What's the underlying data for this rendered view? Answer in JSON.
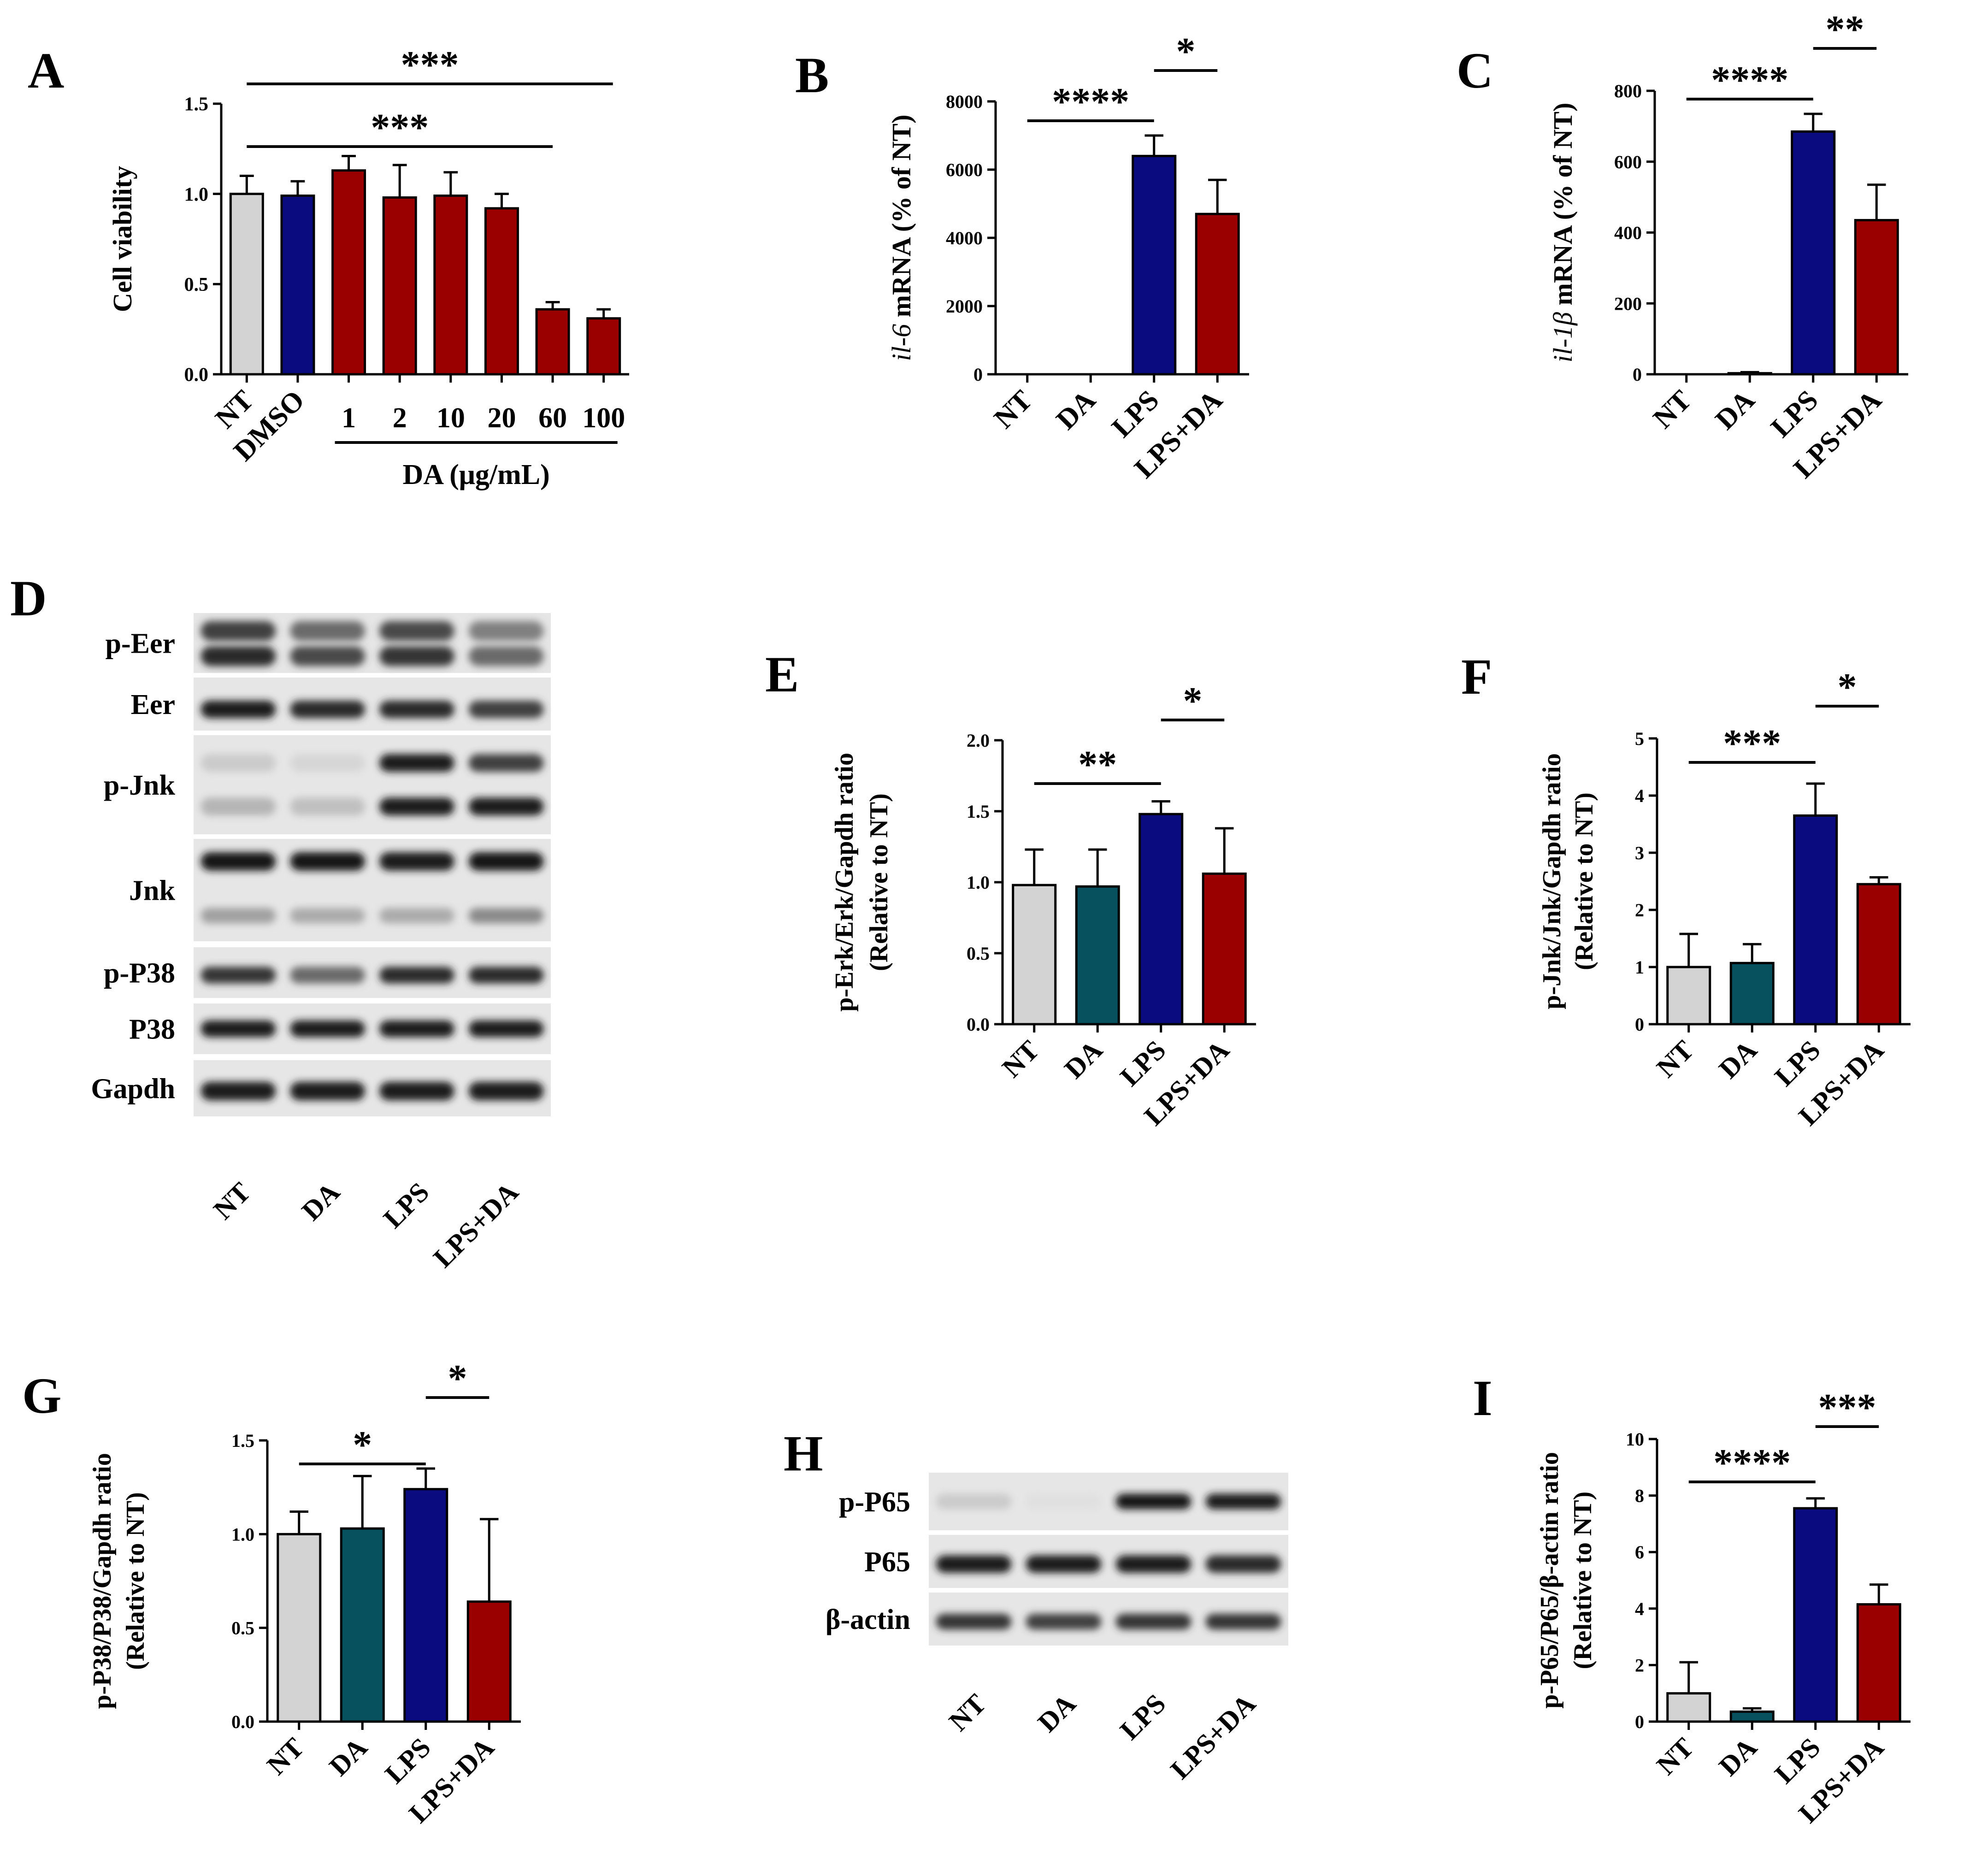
{
  "figure": {
    "colors": {
      "gray": "#d3d3d3",
      "navy": "#0b0b80",
      "darkred": "#9b0000",
      "teal": "#07515f",
      "black": "#000000"
    }
  },
  "chart_data": [
    {
      "panel_label": "A",
      "type": "bar",
      "categories": [
        "NT",
        "DMSO",
        "1",
        "2",
        "10",
        "20",
        "60",
        "100"
      ],
      "values": [
        1.0,
        0.99,
        1.13,
        0.98,
        0.99,
        0.92,
        0.36,
        0.31
      ],
      "errors": [
        0.1,
        0.08,
        0.08,
        0.18,
        0.13,
        0.08,
        0.04,
        0.05
      ],
      "colors": [
        "gray",
        "navy",
        "darkred",
        "darkred",
        "darkred",
        "darkred",
        "darkred",
        "darkred"
      ],
      "ylabel": "Cell viability",
      "ylabel_italic": "",
      "ylabel_rest": "",
      "ylim": [
        0,
        1.5
      ],
      "yticks": [
        "0.0",
        "0.5",
        "1.0",
        "1.5"
      ],
      "group_label": "DA (μg/mL)",
      "rotate_labels": false,
      "significance": [
        {
          "from": 0,
          "to": 7,
          "label": "***"
        },
        {
          "from": 0,
          "to": 6,
          "label": "***"
        }
      ]
    },
    {
      "panel_label": "B",
      "type": "bar",
      "categories": [
        "NT",
        "DA",
        "LPS",
        "LPS+DA"
      ],
      "values": [
        0,
        0,
        6400,
        4700
      ],
      "errors": [
        0,
        0,
        600,
        1000
      ],
      "colors": [
        "gray",
        "gray",
        "navy",
        "darkred"
      ],
      "ylabel": "",
      "ylabel_italic": "il-6",
      "ylabel_rest": " mRNA (% of NT)",
      "ylim": [
        0,
        8000
      ],
      "yticks": [
        "0",
        "2000",
        "4000",
        "6000",
        "8000"
      ],
      "rotate_labels": true,
      "significance": [
        {
          "from": 0,
          "to": 2,
          "label": "****"
        },
        {
          "from": 2,
          "to": 3,
          "label": "*"
        }
      ]
    },
    {
      "panel_label": "C",
      "type": "bar",
      "categories": [
        "NT",
        "DA",
        "LPS",
        "LPS+DA"
      ],
      "values": [
        0,
        3,
        685,
        435
      ],
      "errors": [
        0,
        3,
        50,
        100
      ],
      "colors": [
        "gray",
        "gray",
        "navy",
        "darkred"
      ],
      "ylabel": "",
      "ylabel_italic": "il-1β",
      "ylabel_rest": " mRNA (% of NT)",
      "ylim": [
        0,
        800
      ],
      "yticks": [
        "0",
        "200",
        "400",
        "600",
        "800"
      ],
      "rotate_labels": true,
      "significance": [
        {
          "from": 0,
          "to": 2,
          "label": "****"
        },
        {
          "from": 2,
          "to": 3,
          "label": "**"
        }
      ]
    },
    {
      "panel_label": "E",
      "type": "bar",
      "categories": [
        "NT",
        "DA",
        "LPS",
        "LPS+DA"
      ],
      "values": [
        0.98,
        0.97,
        1.48,
        1.06
      ],
      "errors": [
        0.25,
        0.26,
        0.09,
        0.32
      ],
      "colors": [
        "gray",
        "teal",
        "navy",
        "darkred"
      ],
      "ylabel": "p-Erk/Erk/Gapdh ratio",
      "ylabel2": "(Relative to NT)",
      "ylim": [
        0,
        2.0
      ],
      "yticks": [
        "0.0",
        "0.5",
        "1.0",
        "1.5",
        "2.0"
      ],
      "rotate_labels": true,
      "significance": [
        {
          "from": 0,
          "to": 2,
          "label": "**"
        },
        {
          "from": 2,
          "to": 3,
          "label": "*"
        }
      ]
    },
    {
      "panel_label": "F",
      "type": "bar",
      "categories": [
        "NT",
        "DA",
        "LPS",
        "LPS+DA"
      ],
      "values": [
        1.0,
        1.07,
        3.65,
        2.45
      ],
      "errors": [
        0.58,
        0.33,
        0.56,
        0.12
      ],
      "colors": [
        "gray",
        "teal",
        "navy",
        "darkred"
      ],
      "ylabel": "p-Jnk/Jnk/Gapdh ratio",
      "ylabel2": "(Relative to NT)",
      "ylim": [
        0,
        5
      ],
      "yticks": [
        "0",
        "1",
        "2",
        "3",
        "4",
        "5"
      ],
      "rotate_labels": true,
      "significance": [
        {
          "from": 0,
          "to": 2,
          "label": "***"
        },
        {
          "from": 2,
          "to": 3,
          "label": "*"
        }
      ]
    },
    {
      "panel_label": "G",
      "type": "bar",
      "categories": [
        "NT",
        "DA",
        "LPS",
        "LPS+DA"
      ],
      "values": [
        1.0,
        1.03,
        1.24,
        0.64
      ],
      "errors": [
        0.12,
        0.28,
        0.11,
        0.44
      ],
      "colors": [
        "gray",
        "teal",
        "navy",
        "darkred"
      ],
      "ylabel": "p-P38/P38/Gapdh ratio",
      "ylabel2": "(Relative to NT)",
      "ylim": [
        0,
        1.5
      ],
      "yticks": [
        "0.0",
        "0.5",
        "1.0",
        "1.5"
      ],
      "rotate_labels": true,
      "significance": [
        {
          "from": 0,
          "to": 2,
          "label": "*"
        },
        {
          "from": 2,
          "to": 3,
          "label": "*"
        }
      ]
    },
    {
      "panel_label": "I",
      "type": "bar",
      "categories": [
        "NT",
        "DA",
        "LPS",
        "LPS+DA"
      ],
      "values": [
        1.0,
        0.35,
        7.55,
        4.15
      ],
      "errors": [
        1.1,
        0.12,
        0.35,
        0.7
      ],
      "colors": [
        "gray",
        "teal",
        "navy",
        "darkred"
      ],
      "ylabel": "p-P65/P65/β-actin ratio",
      "ylabel2": "(Relative to NT)",
      "ylim": [
        0,
        10
      ],
      "yticks": [
        "0",
        "2",
        "4",
        "6",
        "8",
        "10"
      ],
      "rotate_labels": true,
      "significance": [
        {
          "from": 0,
          "to": 2,
          "label": "****"
        },
        {
          "from": 2,
          "to": 3,
          "label": "***"
        }
      ]
    }
  ],
  "blots": [
    {
      "panel_label": "D",
      "rows": [
        "p-Eer",
        "Eer",
        "p-Jnk",
        "Jnk",
        "p-P38",
        "P38",
        "Gapdh"
      ],
      "lanes": [
        "NT",
        "DA",
        "LPS",
        "LPS+DA"
      ]
    },
    {
      "panel_label": "H",
      "rows": [
        "p-P65",
        "P65",
        "β-actin"
      ],
      "lanes": [
        "NT",
        "DA",
        "LPS",
        "LPS+DA"
      ]
    }
  ]
}
